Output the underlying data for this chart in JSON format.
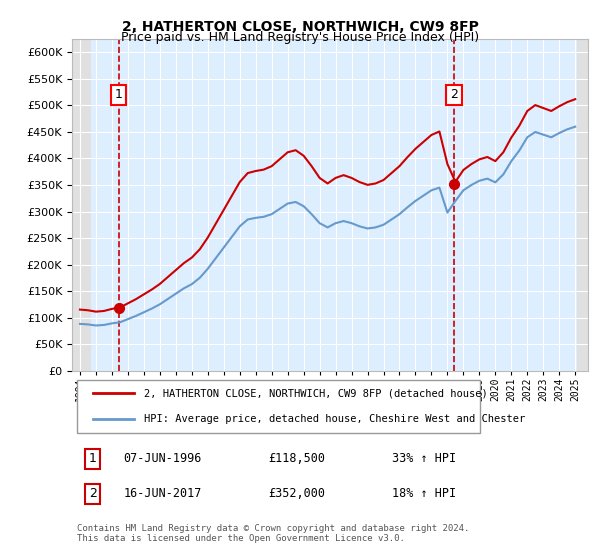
{
  "title": "2, HATHERTON CLOSE, NORTHWICH, CW9 8FP",
  "subtitle": "Price paid vs. HM Land Registry's House Price Index (HPI)",
  "address_line": "2, HATHERTON CLOSE, NORTHWICH, CW9 8FP (detached house)",
  "hpi_line": "HPI: Average price, detached house, Cheshire West and Chester",
  "transaction1_date": "07-JUN-1996",
  "transaction1_price": 118500,
  "transaction1_hpi": "33% ↑ HPI",
  "transaction2_date": "16-JUN-2017",
  "transaction2_price": 352000,
  "transaction2_hpi": "18% ↑ HPI",
  "footnote": "Contains HM Land Registry data © Crown copyright and database right 2024.\nThis data is licensed under the Open Government Licence v3.0.",
  "ylim": [
    0,
    620000
  ],
  "yticks": [
    0,
    50000,
    100000,
    150000,
    200000,
    250000,
    300000,
    350000,
    400000,
    450000,
    500000,
    550000,
    600000
  ],
  "color_property": "#cc0000",
  "color_hpi": "#6699cc",
  "color_dashed": "#cc0000",
  "background_plot": "#ddeeff",
  "background_hatch": "#e8e8e8"
}
